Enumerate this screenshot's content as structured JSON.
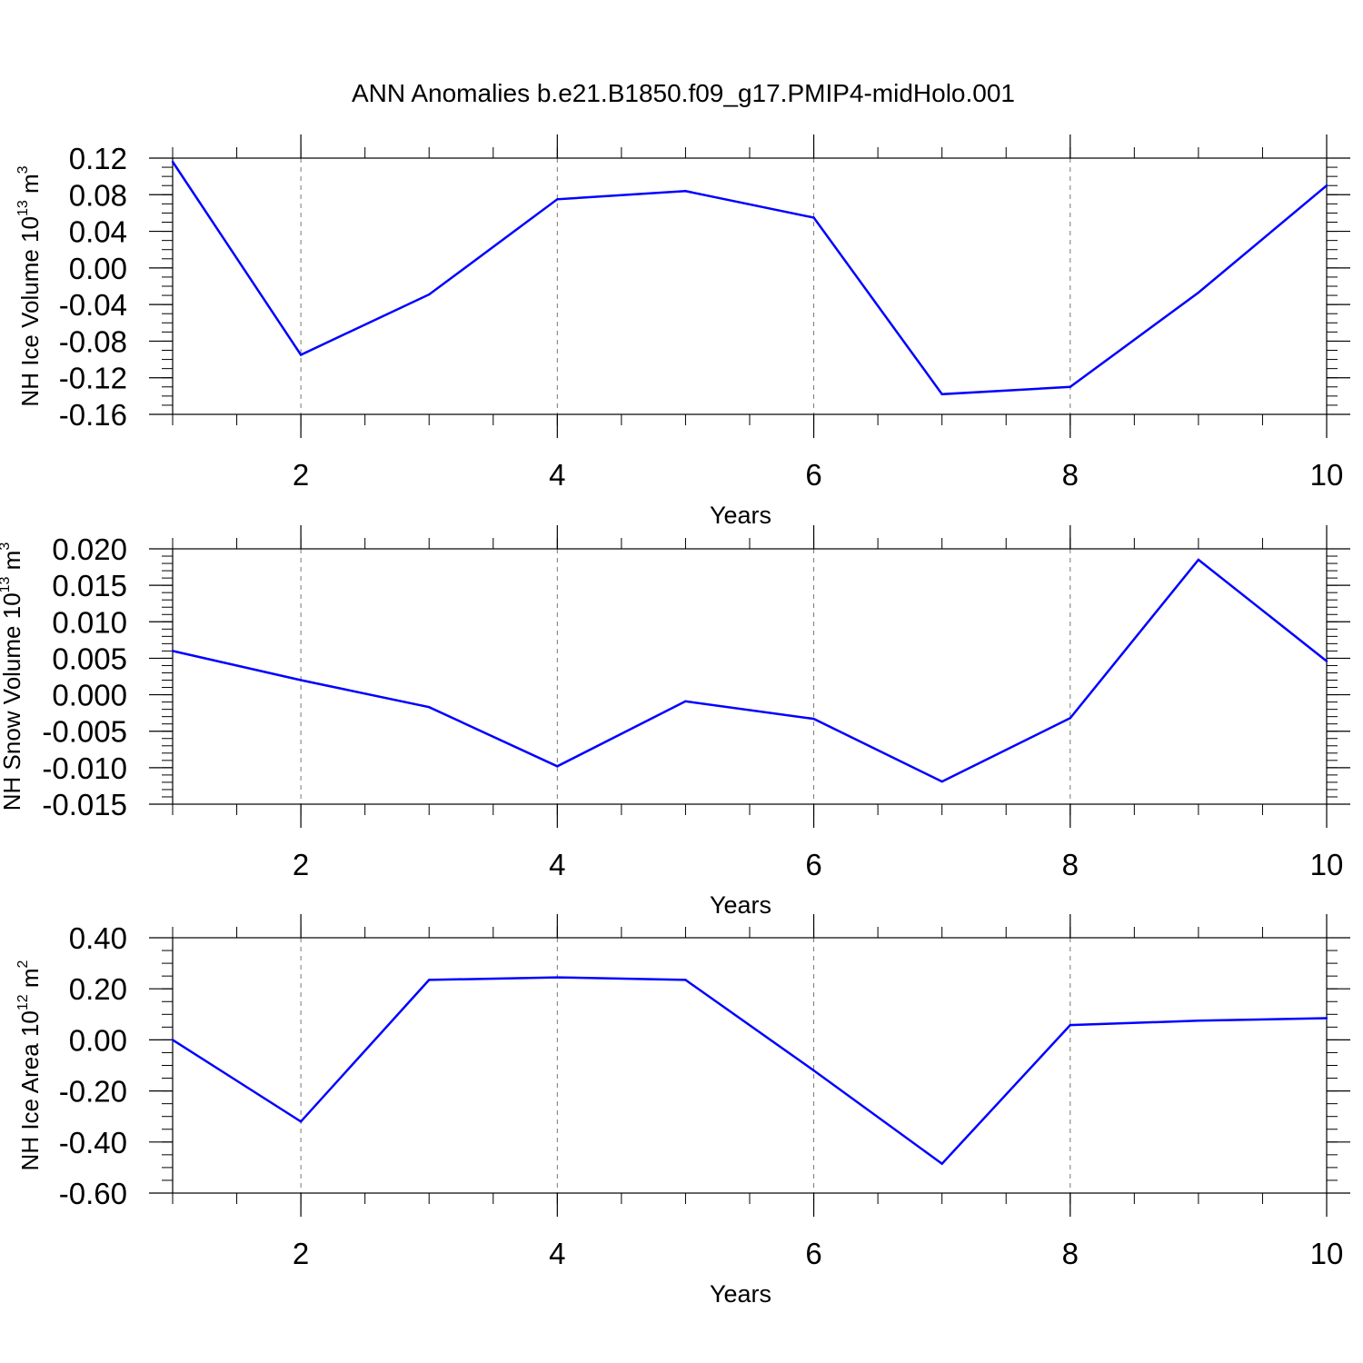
{
  "figure": {
    "title": "ANN Anomalies b.e21.B1850.f09_g17.PMIP4-midHolo.001"
  },
  "chart_data": [
    {
      "type": "line",
      "xlabel": "Years",
      "ylabel": {
        "text": "NH Ice Volume 10",
        "sup": "13",
        "unit": " m",
        "unit_sup": "3"
      },
      "xlim": [
        1,
        10
      ],
      "ylim": [
        -0.16,
        0.12
      ],
      "x_ticks": [
        2,
        4,
        6,
        8,
        10
      ],
      "x_tick_labels": [
        "2",
        "4",
        "6",
        "8",
        "10"
      ],
      "y_ticks": [
        0.12,
        0.08,
        0.04,
        0.0,
        -0.04,
        -0.08,
        -0.12,
        -0.16
      ],
      "y_tick_labels": [
        "0.12",
        "0.08",
        "0.04",
        "0.00",
        "-0.04",
        "-0.08",
        "-0.12",
        "-0.16"
      ],
      "y_minor_step": 0.01,
      "x": [
        1,
        2,
        3,
        4,
        5,
        6,
        7,
        8,
        9,
        10
      ],
      "series": [
        {
          "color": "#0000ff",
          "values": [
            0.116,
            -0.095,
            -0.029,
            0.075,
            0.084,
            0.055,
            -0.138,
            -0.13,
            -0.027,
            0.09
          ]
        }
      ],
      "grid": "vertical dashed at major x ticks"
    },
    {
      "type": "line",
      "xlabel": "Years",
      "ylabel": {
        "text": "NH Snow Volume 10",
        "sup": "13",
        "unit": " m",
        "unit_sup": "3"
      },
      "xlim": [
        1,
        10
      ],
      "ylim": [
        -0.015,
        0.02
      ],
      "x_ticks": [
        2,
        4,
        6,
        8,
        10
      ],
      "x_tick_labels": [
        "2",
        "4",
        "6",
        "8",
        "10"
      ],
      "y_ticks": [
        0.02,
        0.015,
        0.01,
        0.005,
        0.0,
        -0.005,
        -0.01,
        -0.015
      ],
      "y_tick_labels": [
        "0.020",
        "0.015",
        "0.010",
        "0.005",
        "0.000",
        "-0.005",
        "-0.010",
        "-0.015"
      ],
      "y_minor_step": 0.001,
      "x": [
        1,
        2,
        3,
        4,
        5,
        6,
        7,
        8,
        9,
        10
      ],
      "series": [
        {
          "color": "#0000ff",
          "values": [
            0.006,
            0.002,
            -0.0017,
            -0.0098,
            -0.0009,
            -0.0033,
            -0.0119,
            -0.0032,
            0.0185,
            0.0046
          ]
        }
      ],
      "grid": "vertical dashed at major x ticks"
    },
    {
      "type": "line",
      "xlabel": "Years",
      "ylabel": {
        "text": "NH Ice Area 10",
        "sup": "12",
        "unit": " m",
        "unit_sup": "2"
      },
      "xlim": [
        1,
        10
      ],
      "ylim": [
        -0.6,
        0.4
      ],
      "x_ticks": [
        2,
        4,
        6,
        8,
        10
      ],
      "x_tick_labels": [
        "2",
        "4",
        "6",
        "8",
        "10"
      ],
      "y_ticks": [
        0.4,
        0.2,
        0.0,
        -0.2,
        -0.4,
        -0.6
      ],
      "y_tick_labels": [
        "0.40",
        "0.20",
        "0.00",
        "-0.20",
        "-0.40",
        "-0.60"
      ],
      "y_minor_step": 0.05,
      "x": [
        1,
        2,
        3,
        4,
        5,
        6,
        7,
        8,
        9,
        10
      ],
      "series": [
        {
          "color": "#0000ff",
          "values": [
            0.0,
            -0.32,
            0.235,
            0.245,
            0.235,
            -0.12,
            -0.485,
            0.058,
            0.075,
            0.085
          ]
        }
      ],
      "grid": "vertical dashed at major x ticks"
    }
  ]
}
